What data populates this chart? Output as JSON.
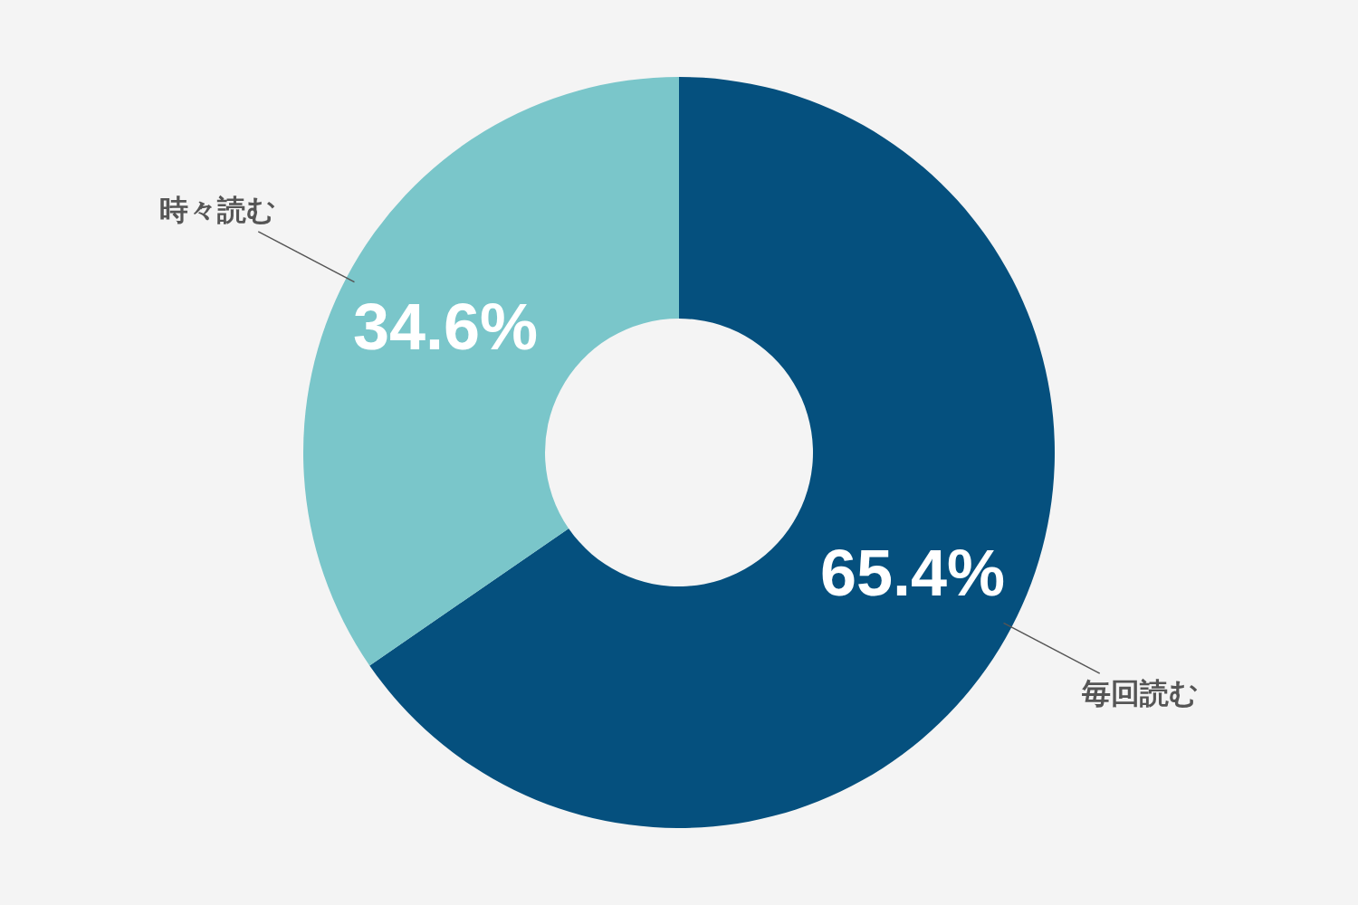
{
  "chart_data": {
    "type": "donut",
    "categories": [
      "毎回読む",
      "時々読む"
    ],
    "values": [
      65.4,
      34.6
    ],
    "colors": [
      "#05507e",
      "#7ac6ca"
    ],
    "value_labels": [
      "65.4%",
      "34.6%"
    ]
  }
}
